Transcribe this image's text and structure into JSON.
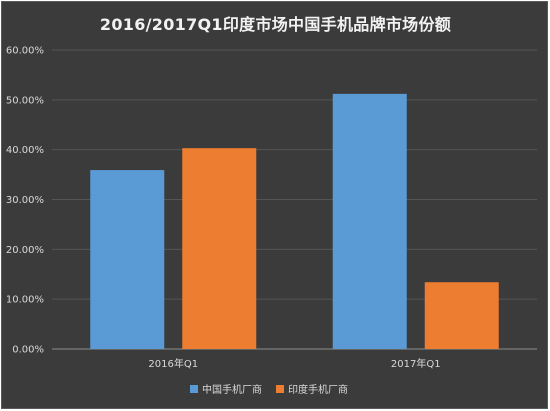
{
  "chart_data": {
    "type": "bar",
    "title": "2016/2017Q1印度市场中国手机品牌市场份额",
    "categories": [
      "2016年Q1",
      "2017年Q1"
    ],
    "series": [
      {
        "name": "中国手机厂商",
        "values": [
          35.9,
          51.2
        ],
        "color": "#5b9bd5"
      },
      {
        "name": "印度手机厂商",
        "values": [
          40.3,
          13.4
        ],
        "color": "#ed7d31"
      }
    ],
    "ylim": [
      0,
      60
    ],
    "yticks": [
      0,
      10,
      20,
      30,
      40,
      50,
      60
    ],
    "ytick_labels": [
      "0.00%",
      "10.00%",
      "20.00%",
      "30.00%",
      "40.00%",
      "50.00%",
      "60.00%"
    ],
    "ylabel": "",
    "xlabel": "",
    "grid": true,
    "legend_position": "bottom"
  }
}
